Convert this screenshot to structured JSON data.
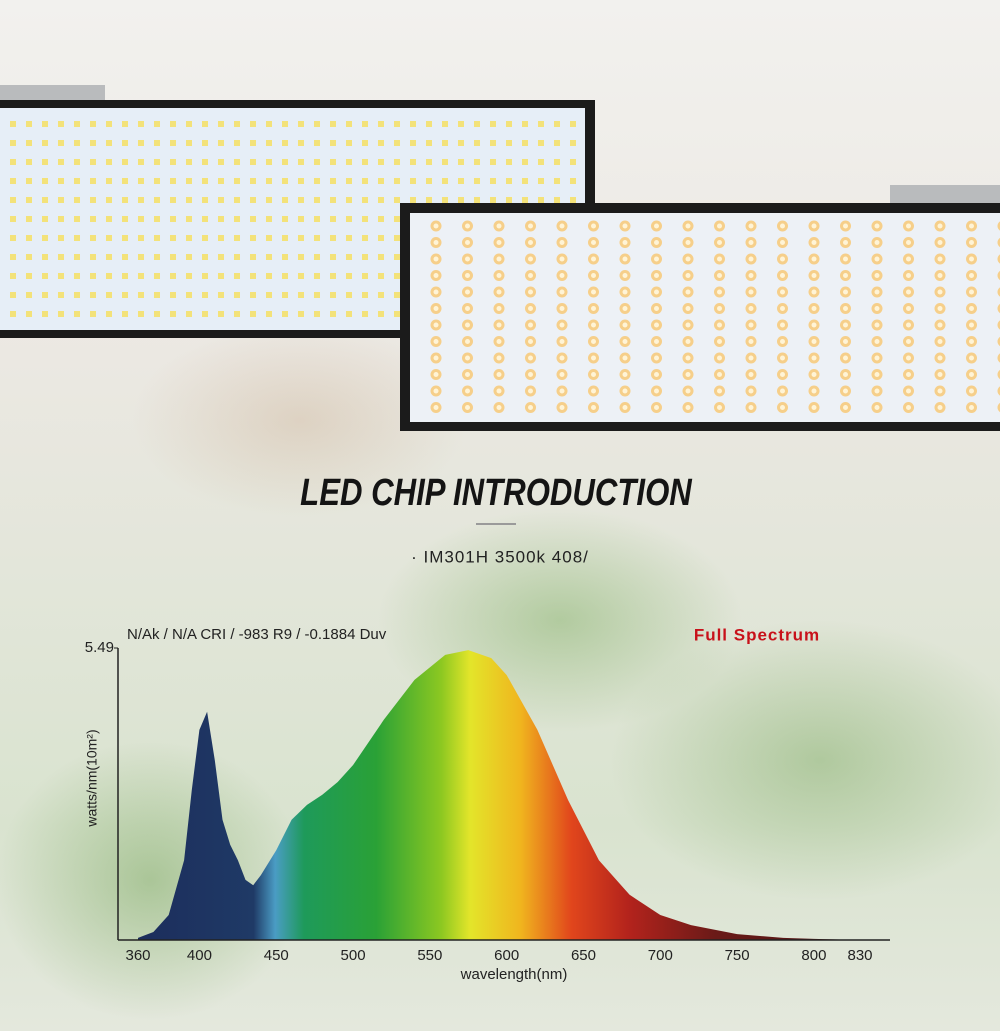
{
  "header": {
    "title": "LED CHIP INTRODUCTION",
    "subtitle": "· IM301H 3500k 408/"
  },
  "chart_data": {
    "type": "area",
    "annotation": "N/Ak / N/A CRI / -983 R9 / -0.1884 Duv",
    "label": "Full Spectrum",
    "x_label": "wavelength(nm)",
    "y_label": "watts/nm(10m²)",
    "x": [
      360,
      370,
      380,
      390,
      395,
      400,
      405,
      410,
      415,
      420,
      425,
      430,
      435,
      440,
      450,
      460,
      470,
      480,
      490,
      500,
      520,
      540,
      560,
      575,
      590,
      600,
      620,
      640,
      660,
      680,
      700,
      720,
      750,
      780,
      800,
      830
    ],
    "values": [
      0.04,
      0.15,
      0.47,
      1.5,
      2.82,
      3.95,
      4.29,
      3.38,
      2.26,
      1.79,
      1.5,
      1.13,
      1.03,
      1.22,
      1.69,
      2.26,
      2.54,
      2.73,
      2.97,
      3.29,
      4.14,
      4.89,
      5.36,
      5.45,
      5.3,
      4.98,
      3.95,
      2.63,
      1.5,
      0.85,
      0.47,
      0.28,
      0.11,
      0.04,
      0.02,
      0
    ],
    "xlim": [
      360,
      830
    ],
    "xticks": [
      360,
      400,
      450,
      500,
      550,
      600,
      650,
      700,
      750,
      800,
      830
    ],
    "ylim": [
      0,
      5.49
    ],
    "yticks": [
      5.49
    ]
  }
}
